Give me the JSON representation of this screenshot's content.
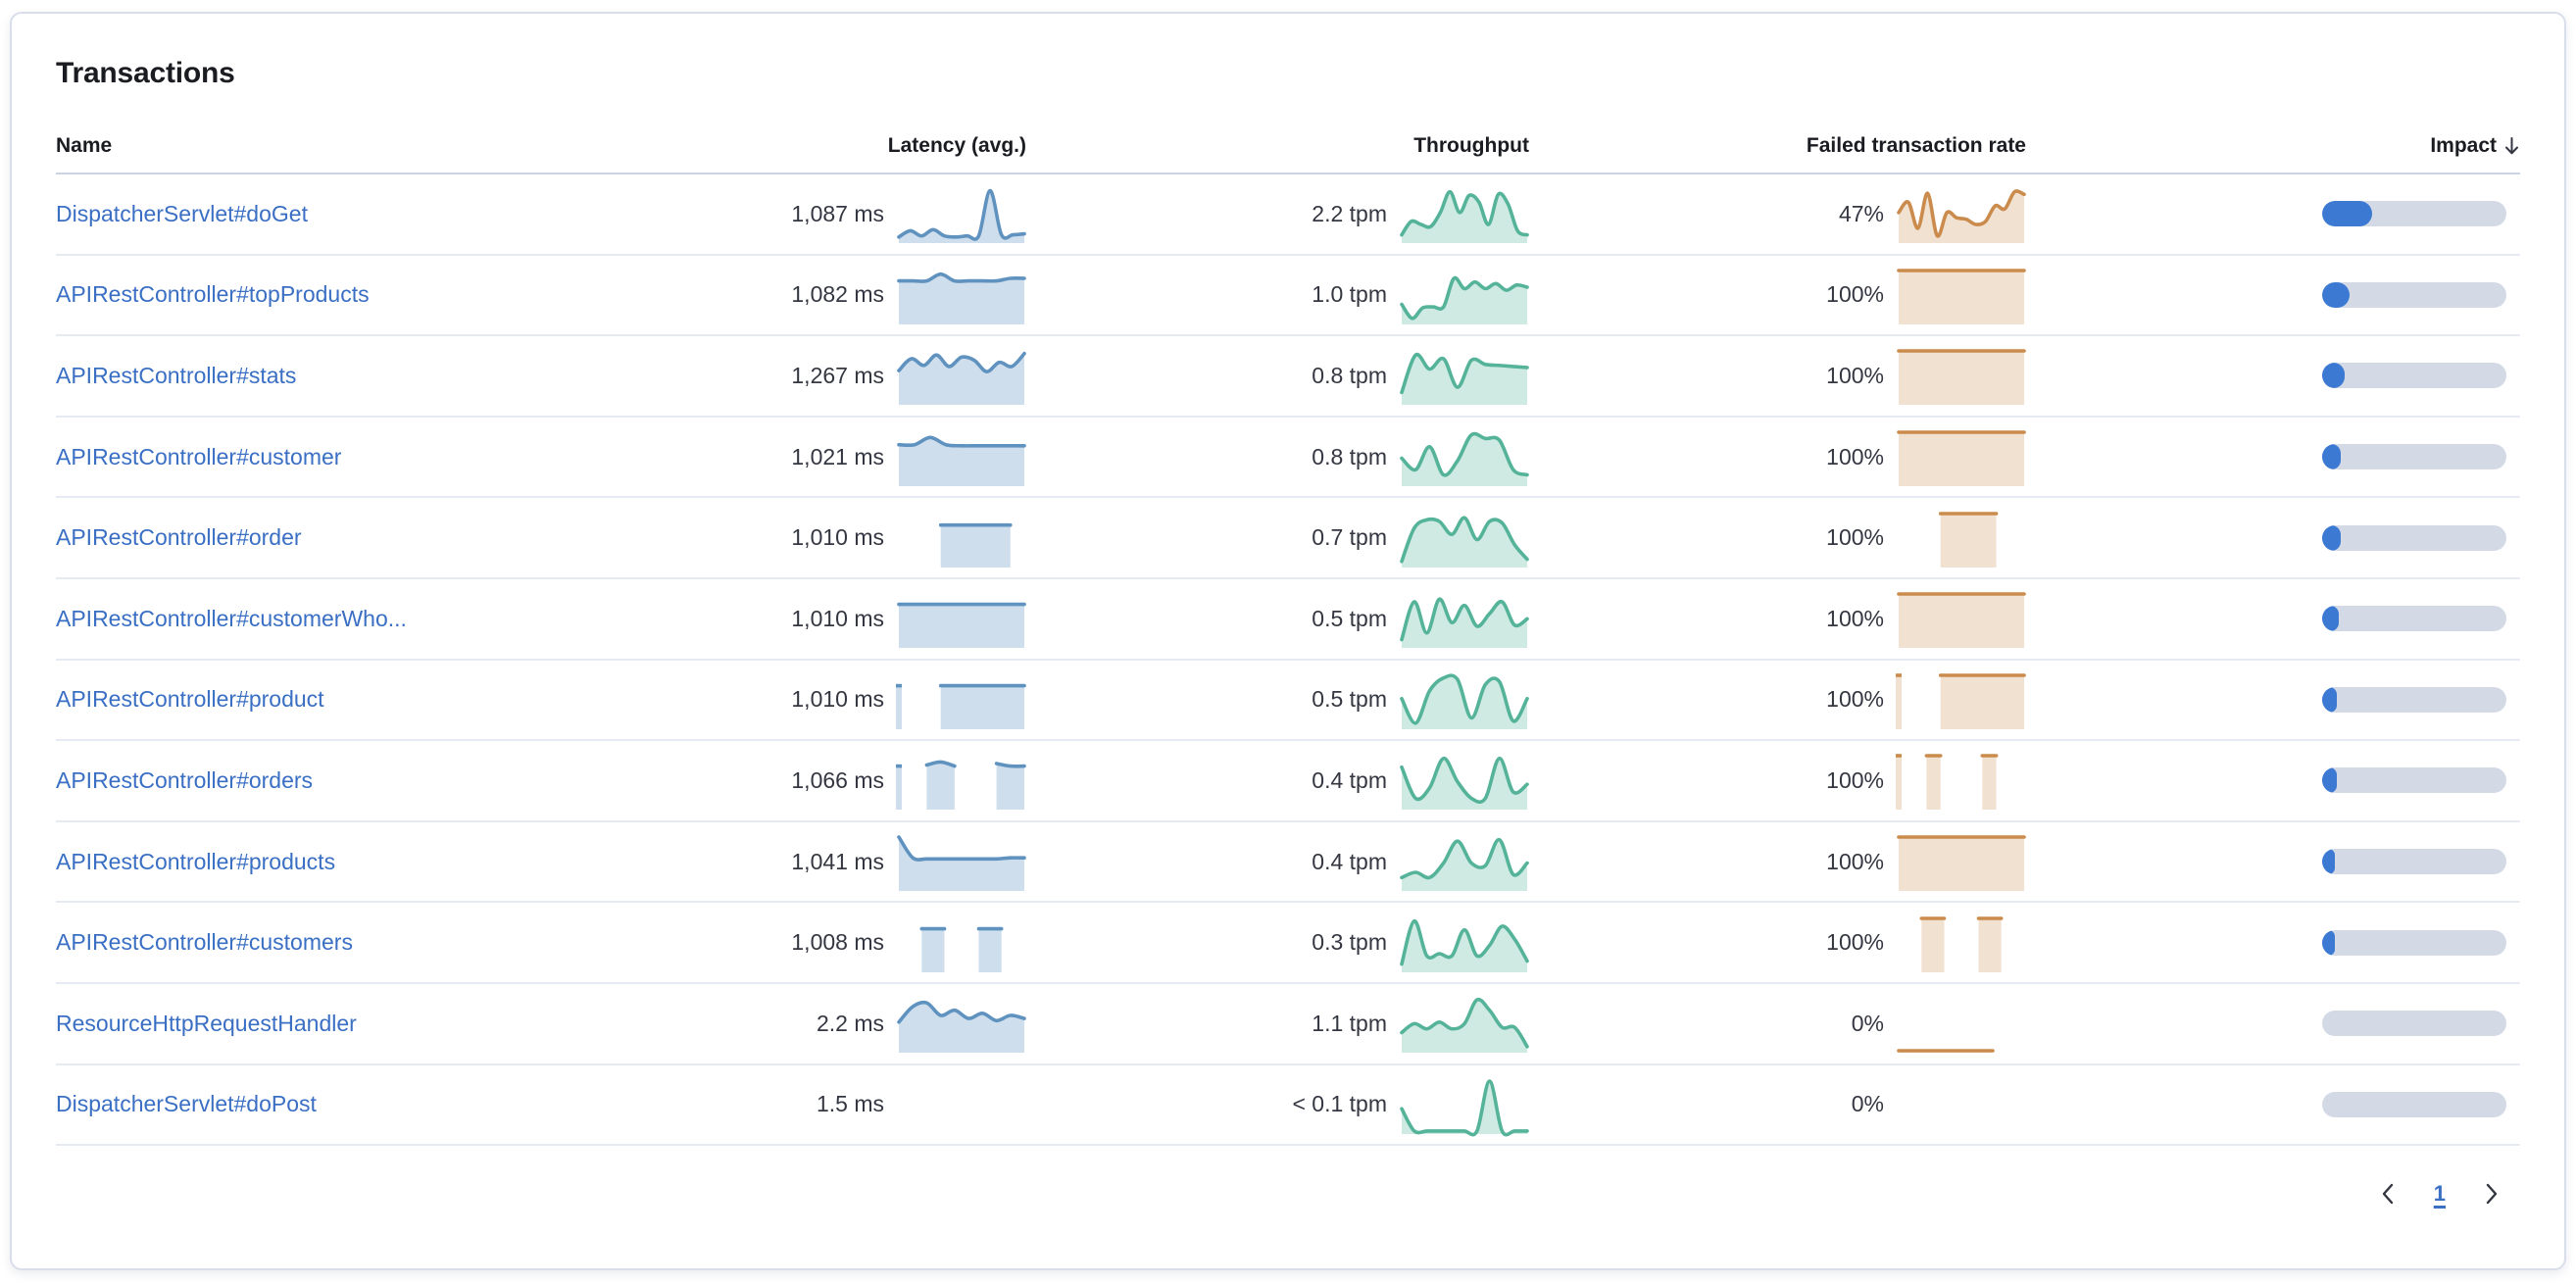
{
  "panel": {
    "title": "Transactions"
  },
  "table": {
    "columns": [
      {
        "label": "Name"
      },
      {
        "label": "Latency (avg.)"
      },
      {
        "label": "Throughput"
      },
      {
        "label": "Failed transaction rate"
      },
      {
        "label": "Impact",
        "sorted": "desc"
      }
    ],
    "rows": [
      {
        "name": "DispatcherServlet#doGet",
        "latency": "1,087 ms",
        "throughput": "2.2 tpm",
        "failed_rate": "47%",
        "impact_pct": 27,
        "latency_series": [
          0.08,
          0.2,
          0.1,
          0.22,
          0.1,
          0.08,
          0.1,
          0.1,
          0.97,
          0.12,
          0.12,
          0.14
        ],
        "throughput_series": [
          0.12,
          0.38,
          0.32,
          0.28,
          0.55,
          0.95,
          0.55,
          0.88,
          0.75,
          0.32,
          0.9,
          0.72,
          0.2,
          0.12
        ],
        "failed_series": [
          0.55,
          0.75,
          0.25,
          0.92,
          0.1,
          0.55,
          0.45,
          0.42,
          0.32,
          0.38,
          0.68,
          0.62,
          0.95,
          0.9
        ]
      },
      {
        "name": "APIRestController#topProducts",
        "latency": "1,082 ms",
        "throughput": "1.0 tpm",
        "failed_rate": "100%",
        "impact_pct": 15,
        "latency_series": [
          0.8,
          0.8,
          0.8,
          0.93,
          0.8,
          0.8,
          0.8,
          0.8,
          0.85,
          0.85
        ],
        "throughput_series": [
          0.35,
          0.08,
          0.28,
          0.3,
          0.3,
          0.85,
          0.65,
          0.78,
          0.65,
          0.75,
          0.62,
          0.72,
          0.68
        ],
        "failed_series": [
          1,
          1,
          1,
          1,
          1,
          1,
          1,
          1
        ]
      },
      {
        "name": "APIRestController#stats",
        "latency": "1,267 ms",
        "throughput": "0.8 tpm",
        "failed_rate": "100%",
        "impact_pct": 12,
        "latency_series": [
          0.62,
          0.85,
          0.72,
          0.92,
          0.7,
          0.88,
          0.82,
          0.6,
          0.78,
          0.7,
          0.95
        ],
        "throughput_series": [
          0.2,
          0.92,
          0.65,
          0.85,
          0.3,
          0.82,
          0.74,
          0.72,
          0.7,
          0.68
        ],
        "failed_series": [
          1,
          1,
          1,
          1,
          1,
          1,
          1,
          1
        ]
      },
      {
        "name": "APIRestController#customer",
        "latency": "1,021 ms",
        "throughput": "0.8 tpm",
        "failed_rate": "100%",
        "impact_pct": 10,
        "latency_series": [
          0.76,
          0.76,
          0.9,
          0.76,
          0.74,
          0.74,
          0.74,
          0.74,
          0.74
        ],
        "throughput_series": [
          0.5,
          0.28,
          0.72,
          0.18,
          0.45,
          0.95,
          0.88,
          0.85,
          0.28,
          0.18
        ],
        "failed_series": [
          1,
          1,
          1,
          1,
          1,
          1,
          1,
          1
        ]
      },
      {
        "name": "APIRestController#order",
        "latency": "1,010 ms",
        "throughput": "0.7 tpm",
        "failed_rate": "100%",
        "impact_pct": 10,
        "latency_series": [
          null,
          null,
          null,
          0.78,
          0.78,
          0.78,
          0.78,
          0.78,
          0.78,
          null
        ],
        "throughput_series": [
          0.08,
          0.72,
          0.88,
          0.85,
          0.6,
          0.92,
          0.5,
          0.85,
          0.82,
          0.4,
          0.12
        ],
        "failed_series": [
          null,
          null,
          null,
          1,
          1,
          1,
          1,
          1,
          null,
          null
        ]
      },
      {
        "name": "APIRestController#customerWho...",
        "latency": "1,010 ms",
        "throughput": "0.5 tpm",
        "failed_rate": "100%",
        "impact_pct": 9,
        "latency_series": [
          0.8,
          0.8,
          0.8,
          0.8,
          0.8,
          0.8,
          0.8,
          0.8,
          0.8,
          0.8
        ],
        "throughput_series": [
          0.12,
          0.85,
          0.25,
          0.9,
          0.45,
          0.78,
          0.38,
          0.62,
          0.85,
          0.4,
          0.52
        ],
        "failed_series": [
          1,
          1,
          1,
          1,
          1,
          1,
          1,
          1,
          1,
          1
        ]
      },
      {
        "name": "APIRestController#product",
        "latency": "1,010 ms",
        "throughput": "0.5 tpm",
        "failed_rate": "100%",
        "impact_pct": 8,
        "latency_series": [
          0.8,
          null,
          null,
          0.8,
          0.8,
          0.8,
          0.8,
          0.8,
          0.8,
          0.8
        ],
        "throughput_series": [
          0.55,
          0.08,
          0.7,
          0.95,
          0.92,
          0.18,
          0.82,
          0.88,
          0.12,
          0.55
        ],
        "failed_series": [
          1,
          null,
          null,
          1,
          1,
          1,
          1,
          1,
          1,
          1
        ]
      },
      {
        "name": "APIRestController#orders",
        "latency": "1,066 ms",
        "throughput": "0.4 tpm",
        "failed_rate": "100%",
        "impact_pct": 8,
        "latency_series": [
          0.8,
          null,
          0.82,
          0.88,
          0.8,
          null,
          null,
          0.85,
          0.8,
          0.8
        ],
        "throughput_series": [
          0.78,
          0.18,
          0.38,
          0.95,
          0.5,
          0.18,
          0.18,
          0.95,
          0.3,
          0.45
        ],
        "failed_series": [
          1,
          null,
          1,
          1,
          null,
          null,
          1,
          1,
          null,
          null
        ]
      },
      {
        "name": "APIRestController#products",
        "latency": "1,041 ms",
        "throughput": "0.4 tpm",
        "failed_rate": "100%",
        "impact_pct": 7,
        "latency_series": [
          1.0,
          0.6,
          0.58,
          0.58,
          0.58,
          0.58,
          0.58,
          0.58,
          0.6,
          0.6
        ],
        "throughput_series": [
          0.22,
          0.32,
          0.22,
          0.5,
          0.92,
          0.5,
          0.45,
          0.95,
          0.28,
          0.5
        ],
        "failed_series": [
          1,
          1,
          1,
          1,
          1,
          1,
          1,
          1,
          1,
          1
        ]
      },
      {
        "name": "APIRestController#customers",
        "latency": "1,008 ms",
        "throughput": "0.3 tpm",
        "failed_rate": "100%",
        "impact_pct": 7,
        "latency_series": [
          null,
          null,
          0.8,
          0.8,
          0.8,
          null,
          null,
          0.8,
          0.8,
          0.8,
          null,
          null
        ],
        "throughput_series": [
          0.12,
          0.95,
          0.28,
          0.32,
          0.28,
          0.78,
          0.28,
          0.48,
          0.85,
          0.6,
          0.18
        ],
        "failed_series": [
          null,
          null,
          1,
          1,
          1,
          null,
          null,
          1,
          1,
          1,
          null,
          null
        ]
      },
      {
        "name": "ResourceHttpRequestHandler",
        "latency": "2.2 ms",
        "throughput": "1.1 tpm",
        "failed_rate": "0%",
        "impact_pct": 0,
        "latency_series": [
          0.55,
          0.85,
          0.92,
          0.68,
          0.78,
          0.62,
          0.72,
          0.58,
          0.68,
          0.62
        ],
        "throughput_series": [
          0.35,
          0.52,
          0.42,
          0.55,
          0.42,
          0.52,
          0.98,
          0.78,
          0.45,
          0.45,
          0.08
        ],
        "failed_series": [
          0,
          0,
          0,
          0,
          0,
          0,
          0,
          null,
          null
        ]
      },
      {
        "name": "DispatcherServlet#doPost",
        "latency": "1.5 ms",
        "throughput": "< 0.1 tpm",
        "failed_rate": "0%",
        "impact_pct": 0,
        "latency_series": [],
        "throughput_series": [
          0.45,
          0.02,
          0.02,
          0.02,
          0.02,
          0.02,
          0.02,
          0.98,
          0.02,
          0.02,
          0.02
        ],
        "failed_series": []
      }
    ]
  },
  "pagination": {
    "page": "1"
  },
  "colors": {
    "link": "#3a6fc4",
    "heading_text": "#1a1c21",
    "body_text": "#343741",
    "latency_line": "#6092c0",
    "latency_fill": "rgba(96,146,192,0.30)",
    "throughput_line": "#54b399",
    "throughput_fill": "rgba(84,179,153,0.28)",
    "failed_line": "#ca8b4c",
    "failed_fill": "rgba(202,139,76,0.26)",
    "impact_fill": "#3b79d2",
    "impact_track": "#d3dae6",
    "row_divider": "#e6eaf3",
    "header_divider": "#ccd4e2"
  }
}
